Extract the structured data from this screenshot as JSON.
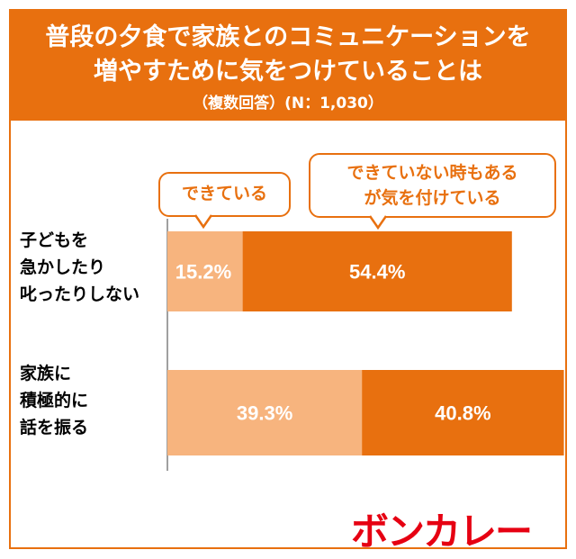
{
  "header": {
    "title_line1": "普段の夕食で家族とのコミュニケーションを",
    "title_line2": "増やすために気をつけていることは",
    "subtitle": "（複数回答）(N：1,030）"
  },
  "callouts": {
    "series1": "できている",
    "series2_line1": "できていない時もある",
    "series2_line2": "が気を付けている"
  },
  "logo": "ボンカレー",
  "colors": {
    "accent": "#e8700f",
    "light": "#f7b47e",
    "logo": "#e60012"
  },
  "chart_data": {
    "type": "bar",
    "orientation": "horizontal",
    "stacked": true,
    "categories": [
      "子どもを急かしたり叱ったりしない",
      "家族に積極的に話を振る"
    ],
    "category_labels": [
      "子どもを\n急かしたり\n叱ったりしない",
      "家族に\n積極的に\n話を振る"
    ],
    "series": [
      {
        "name": "できている",
        "values": [
          15.2,
          39.3
        ],
        "labels": [
          "15.2%",
          "39.3%"
        ],
        "color": "#f7b47e"
      },
      {
        "name": "できていない時もあるが気を付けている",
        "values": [
          54.4,
          40.8
        ],
        "labels": [
          "54.4%",
          "40.8%"
        ],
        "color": "#e8700f"
      }
    ],
    "xlim": [
      0,
      80
    ],
    "xlabel": "",
    "ylabel": "",
    "grid": false,
    "legend": "callouts-top"
  }
}
